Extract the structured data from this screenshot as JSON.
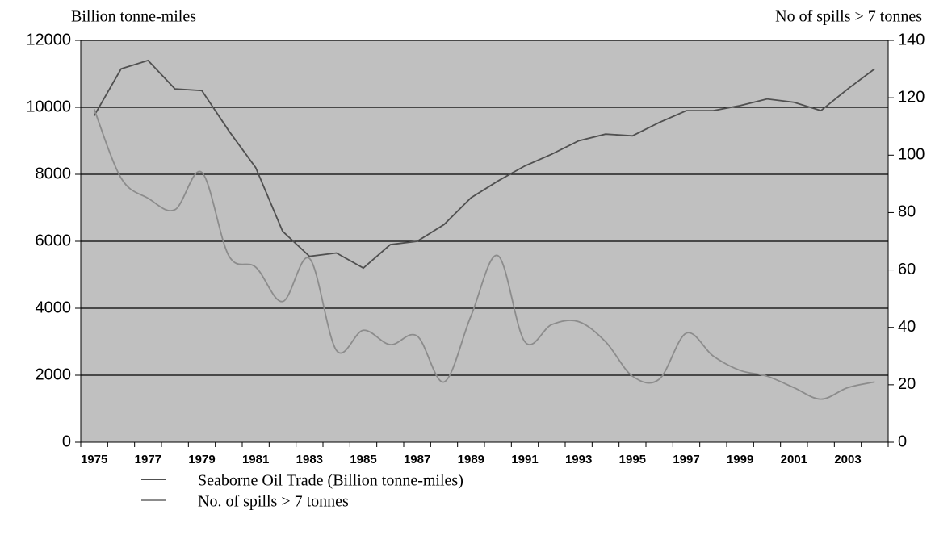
{
  "chart_data": {
    "type": "line",
    "y_label": "Billion tonne-miles",
    "y2_label": "No of spills > 7 tonnes",
    "categories": [
      "1975",
      null,
      "1977",
      null,
      "1979",
      null,
      "1981",
      null,
      "1983",
      null,
      "1985",
      null,
      "1987",
      null,
      "1989",
      null,
      "1991",
      null,
      "1993",
      null,
      "1995",
      null,
      "1997",
      null,
      "1999",
      null,
      "2001",
      null,
      "2003",
      null
    ],
    "series": [
      {
        "name": "Seaborne Oil Trade (Billion tonne-miles)",
        "color": "#505050",
        "axis": "y",
        "smooth": false,
        "values": [
          9750,
          11150,
          11400,
          10550,
          10500,
          9300,
          8200,
          6300,
          5550,
          5650,
          5200,
          5900,
          6000,
          6500,
          7300,
          7800,
          8250,
          8600,
          9000,
          9200,
          9150,
          9550,
          9900,
          9900,
          10050,
          10250,
          10150,
          9900,
          10550,
          11150
        ]
      },
      {
        "name": "No. of spills > 7 tonnes",
        "color": "#8c8c8c",
        "axis": "y2",
        "smooth": true,
        "values": [
          116,
          92,
          85,
          81,
          94,
          65,
          61,
          49,
          64,
          32,
          39,
          34,
          37,
          21,
          44,
          65,
          35,
          41,
          42,
          35,
          23,
          22,
          38,
          30,
          25,
          23,
          19,
          15,
          19,
          21
        ]
      }
    ],
    "ylim": [
      0,
      12000
    ],
    "yticks": [
      0,
      2000,
      4000,
      6000,
      8000,
      10000,
      12000
    ],
    "y2lim": [
      0,
      140
    ],
    "y2ticks": [
      0,
      20,
      40,
      60,
      80,
      100,
      120,
      140
    ],
    "grid": true,
    "plot_background": "#c0c0c0",
    "legend": "bottom"
  }
}
